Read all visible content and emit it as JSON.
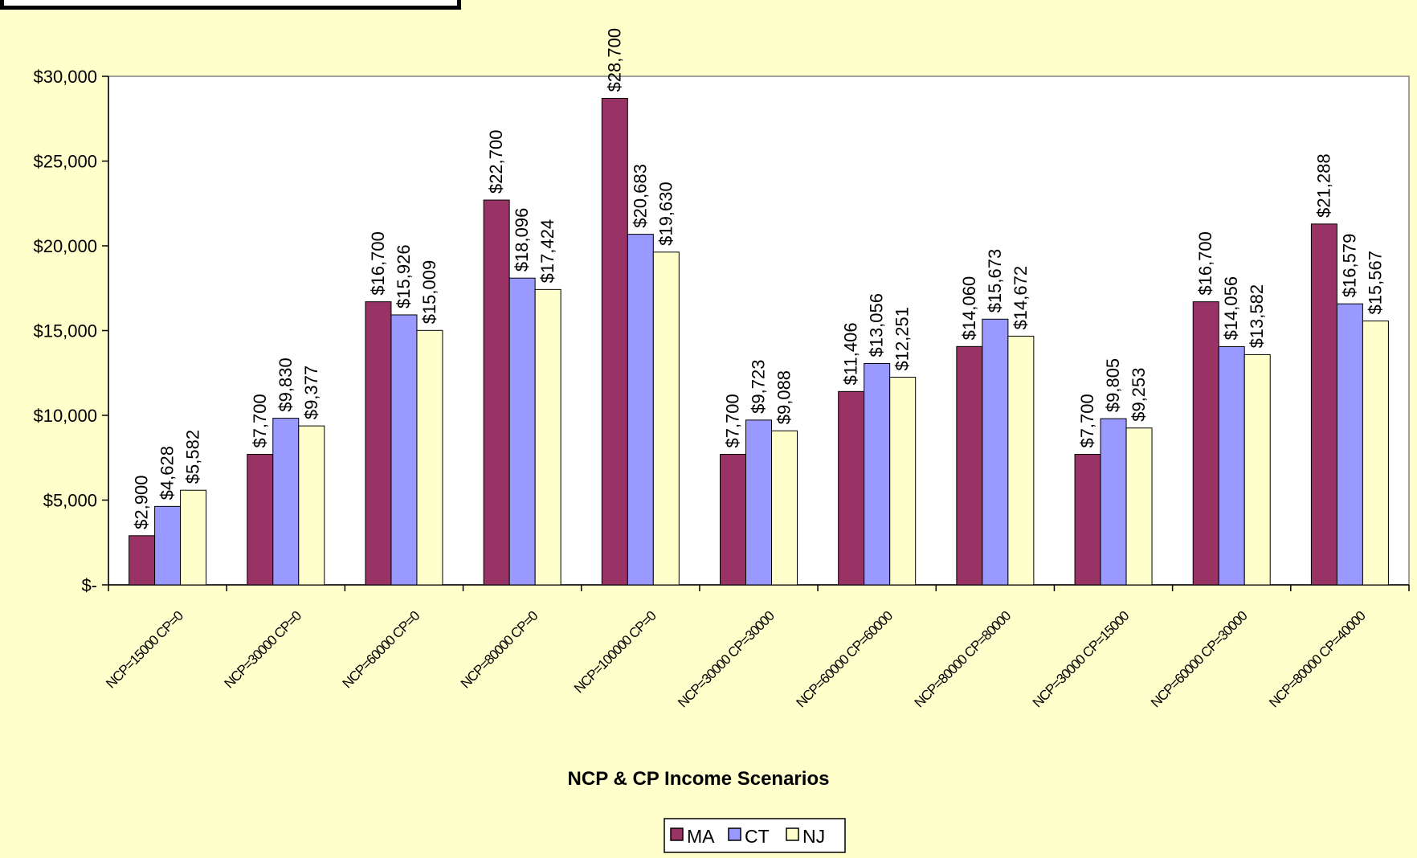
{
  "chart_data": {
    "type": "bar",
    "title": "",
    "xlabel": "NCP & CP Income Scenarios",
    "ylabel": "",
    "ylim": [
      0,
      30000
    ],
    "yticks": [
      0,
      5000,
      10000,
      15000,
      20000,
      25000,
      30000
    ],
    "ytick_labels": [
      "$-",
      "$5,000",
      "$10,000",
      "$15,000",
      "$20,000",
      "$25,000",
      "$30,000"
    ],
    "categories": [
      "NCP=15000 CP=0",
      "NCP=30000 CP=0",
      "NCP=60000 CP=0",
      "NCP=80000 CP=0",
      "NCP=100000 CP=0",
      "NCP=30000 CP=30000",
      "NCP=60000 CP=60000",
      "NCP=80000 CP=80000",
      "NCP=30000 CP=15000",
      "NCP=60000 CP=30000",
      "NCP=80000 CP=40000"
    ],
    "series": [
      {
        "name": "MA",
        "color": "#993366",
        "values": [
          2900,
          7700,
          16700,
          22700,
          28700,
          7700,
          11406,
          14060,
          7700,
          16700,
          21288
        ],
        "labels": [
          "$2,900",
          "$7,700",
          "$16,700",
          "$22,700",
          "$28,700",
          "$7,700",
          "$11,406",
          "$14,060",
          "$7,700",
          "$16,700",
          "$21,288"
        ]
      },
      {
        "name": "CT",
        "color": "#9999ff",
        "values": [
          4628,
          9830,
          15926,
          18096,
          20683,
          9723,
          13056,
          15673,
          9805,
          14056,
          16579
        ],
        "labels": [
          "$4,628",
          "$9,830",
          "$15,926",
          "$18,096",
          "$20,683",
          "$9,723",
          "$13,056",
          "$15,673",
          "$9,805",
          "$14,056",
          "$16,579"
        ]
      },
      {
        "name": "NJ",
        "color": "#ffffcc",
        "values": [
          5582,
          9377,
          15009,
          17424,
          19630,
          9088,
          12251,
          14672,
          9253,
          13582,
          15567
        ],
        "labels": [
          "$5,582",
          "$9,377",
          "$15,009",
          "$17,424",
          "$19,630",
          "$9,088",
          "$12,251",
          "$14,672",
          "$9,253",
          "$13,582",
          "$15,567"
        ]
      }
    ],
    "grid": false,
    "legend_position": "bottom"
  }
}
